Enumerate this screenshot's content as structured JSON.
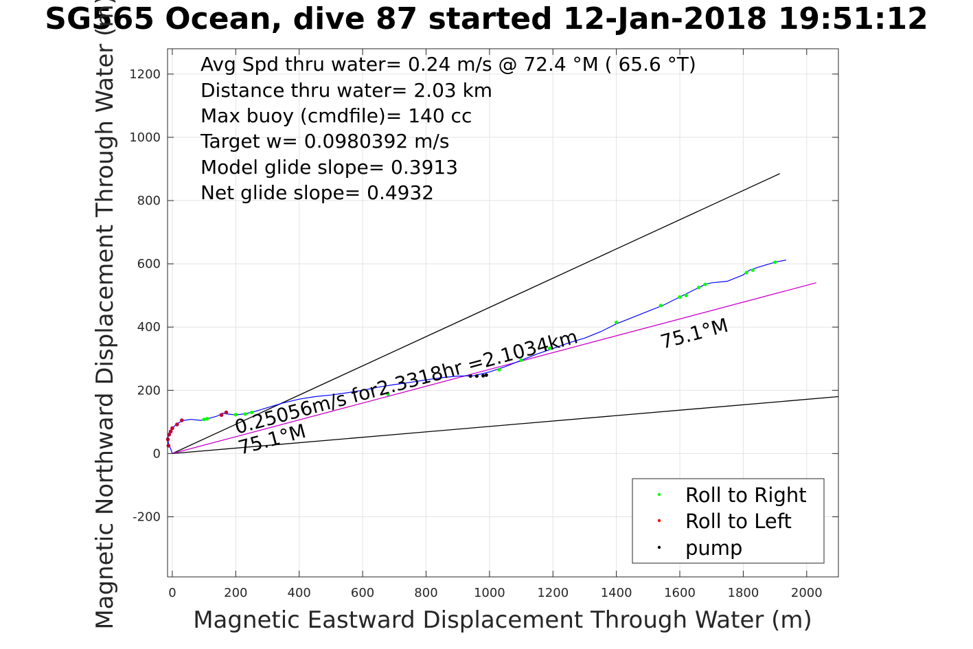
{
  "title": "SG565 Ocean, dive 87 started 12-Jan-2018 19:51:12",
  "chart_data": {
    "type": "line",
    "title": "SG565 Ocean, dive 87 started 12-Jan-2018 19:51:12",
    "xlabel": "Magnetic Eastward Displacement Through Water (m)",
    "ylabel": "Magnetic Northward Displacement Through Water (m)",
    "xlim": [
      -15,
      2100
    ],
    "ylim": [
      -390,
      1280
    ],
    "xticks": [
      0,
      200,
      400,
      600,
      800,
      1000,
      1200,
      1400,
      1600,
      1800,
      2000
    ],
    "yticks": [
      -200,
      0,
      200,
      400,
      600,
      800,
      1000,
      1200
    ],
    "grid": true,
    "stats_lines": [
      "Avg Spd thru water=  0.24 m/s @  72.4 °M ( 65.6 °T)",
      "Distance thru water=  2.03 km",
      "Max buoy (cmdfile)= 140 cc",
      "Target w= 0.0980392 m/s",
      "Model glide slope= 0.3913",
      "Net glide slope= 0.4932"
    ],
    "annotations": {
      "speed_line": "0.25056m/s for2.3318hr =2.1034km",
      "heading_near": "75.1°M",
      "heading_far": "75.1°M"
    },
    "reference_lines": [
      {
        "name": "upper bound",
        "x": [
          0,
          1915
        ],
        "y": [
          0,
          885
        ],
        "color": "#000000"
      },
      {
        "name": "lower bound",
        "x": [
          0,
          2100
        ],
        "y": [
          0,
          180
        ],
        "color": "#000000"
      },
      {
        "name": "heading 75.1°M",
        "x": [
          0,
          2030
        ],
        "y": [
          0,
          540
        ],
        "color": "#cc00cc"
      }
    ],
    "track": {
      "color": "#0000ff",
      "x": [
        0,
        -5,
        -12,
        -14,
        -10,
        0,
        12,
        25,
        35,
        60,
        90,
        110,
        140,
        160,
        175,
        200,
        230,
        260,
        300,
        350,
        400,
        450,
        500,
        550,
        600,
        650,
        700,
        750,
        800,
        850,
        900,
        950,
        1000,
        1050,
        1100,
        1150,
        1200,
        1250,
        1300,
        1350,
        1400,
        1450,
        1500,
        1550,
        1600,
        1650,
        1680,
        1700,
        1750,
        1800,
        1820,
        1850,
        1900,
        1935
      ],
      "y": [
        0,
        15,
        30,
        50,
        65,
        80,
        92,
        100,
        105,
        108,
        105,
        110,
        118,
        128,
        125,
        122,
        126,
        133,
        145,
        160,
        172,
        180,
        185,
        192,
        200,
        210,
        218,
        225,
        233,
        240,
        245,
        246,
        258,
        275,
        295,
        315,
        332,
        350,
        365,
        385,
        410,
        430,
        450,
        470,
        495,
        520,
        535,
        540,
        545,
        565,
        580,
        590,
        605,
        612
      ]
    },
    "roll_right_x": [
      100,
      110,
      200,
      230,
      250,
      680,
      1030,
      1100,
      1190,
      1400,
      1540,
      1600,
      1620,
      1660,
      1680,
      1810,
      1830,
      1900
    ],
    "roll_right_y": [
      108,
      110,
      123,
      125,
      130,
      188,
      265,
      295,
      333,
      415,
      468,
      495,
      500,
      525,
      535,
      572,
      580,
      605
    ],
    "roll_left_x": [
      -12,
      -14,
      -10,
      -5,
      0,
      15,
      30,
      155,
      170
    ],
    "roll_left_y": [
      25,
      45,
      60,
      70,
      80,
      92,
      105,
      122,
      130
    ],
    "pump_x": [
      940,
      960,
      980,
      990
    ],
    "pump_y": [
      245,
      245,
      246,
      248
    ],
    "legend": {
      "entries": [
        {
          "label": "Roll to Right",
          "color": "#00ff00"
        },
        {
          "label": "Roll to Left",
          "color": "#ff0000"
        },
        {
          "label": "pump",
          "color": "#000000"
        }
      ],
      "position": "bottom-right"
    }
  }
}
